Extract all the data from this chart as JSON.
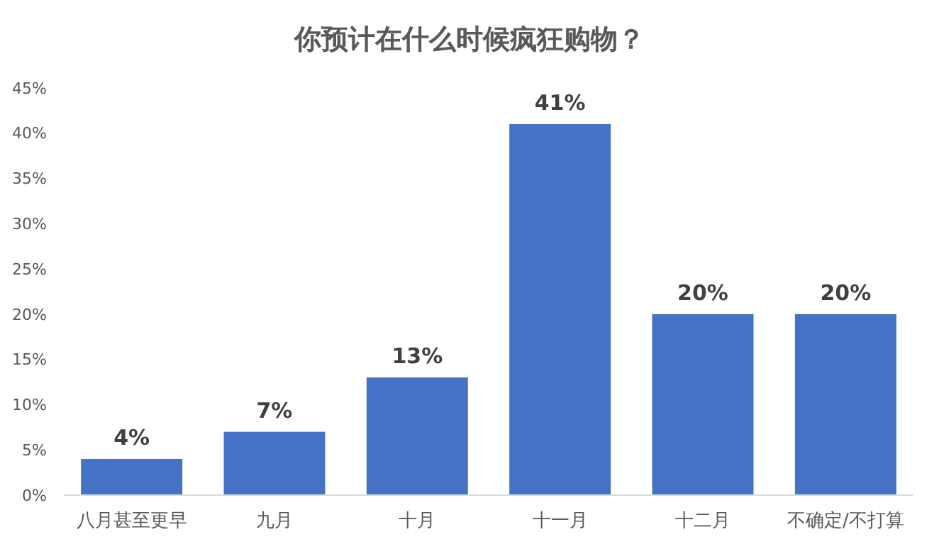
{
  "chart_data": {
    "type": "bar",
    "title": "你预计在什么时候疯狂购物？",
    "categories": [
      "八月甚至更早",
      "九月",
      "十月",
      "十一月",
      "十二月",
      "不确定/不打算"
    ],
    "values": [
      4,
      7,
      13,
      41,
      20,
      20
    ],
    "value_labels": [
      "4%",
      "7%",
      "13%",
      "41%",
      "20%",
      "20%"
    ],
    "color": "#4472c4",
    "ylim": [
      0,
      45
    ],
    "yticks": [
      {
        "value": 0,
        "label": "0%"
      },
      {
        "value": 5,
        "label": "5%"
      },
      {
        "value": 10,
        "label": "10%"
      },
      {
        "value": 15,
        "label": "15%"
      },
      {
        "value": 20,
        "label": "20%"
      },
      {
        "value": 25,
        "label": "25%"
      },
      {
        "value": 30,
        "label": "30%"
      },
      {
        "value": 35,
        "label": "35%"
      },
      {
        "value": 40,
        "label": "40%"
      },
      {
        "value": 45,
        "label": "45%"
      }
    ],
    "grid": false
  }
}
